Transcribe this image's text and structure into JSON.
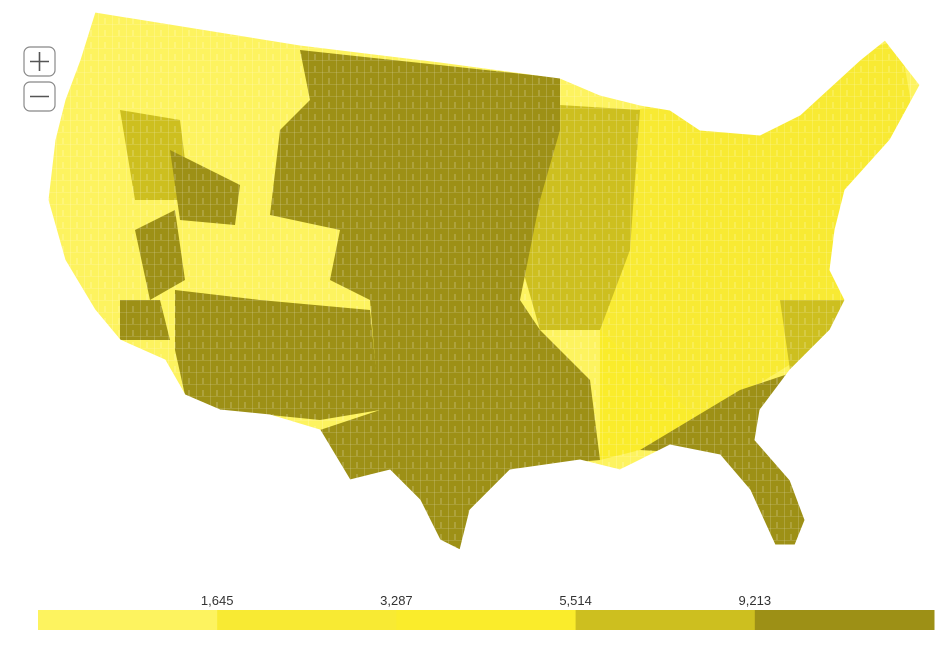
{
  "legend": {
    "thresholds": [
      {
        "value": 1645,
        "label": "1,645"
      },
      {
        "value": 3287,
        "label": "3,287"
      },
      {
        "value": 5514,
        "label": "5,514"
      },
      {
        "value": 9213,
        "label": "9,213"
      }
    ],
    "colors": [
      "#fdf35f",
      "#f8ea33",
      "#faec2b",
      "#cdbf1f",
      "#9d9016"
    ]
  }
}
